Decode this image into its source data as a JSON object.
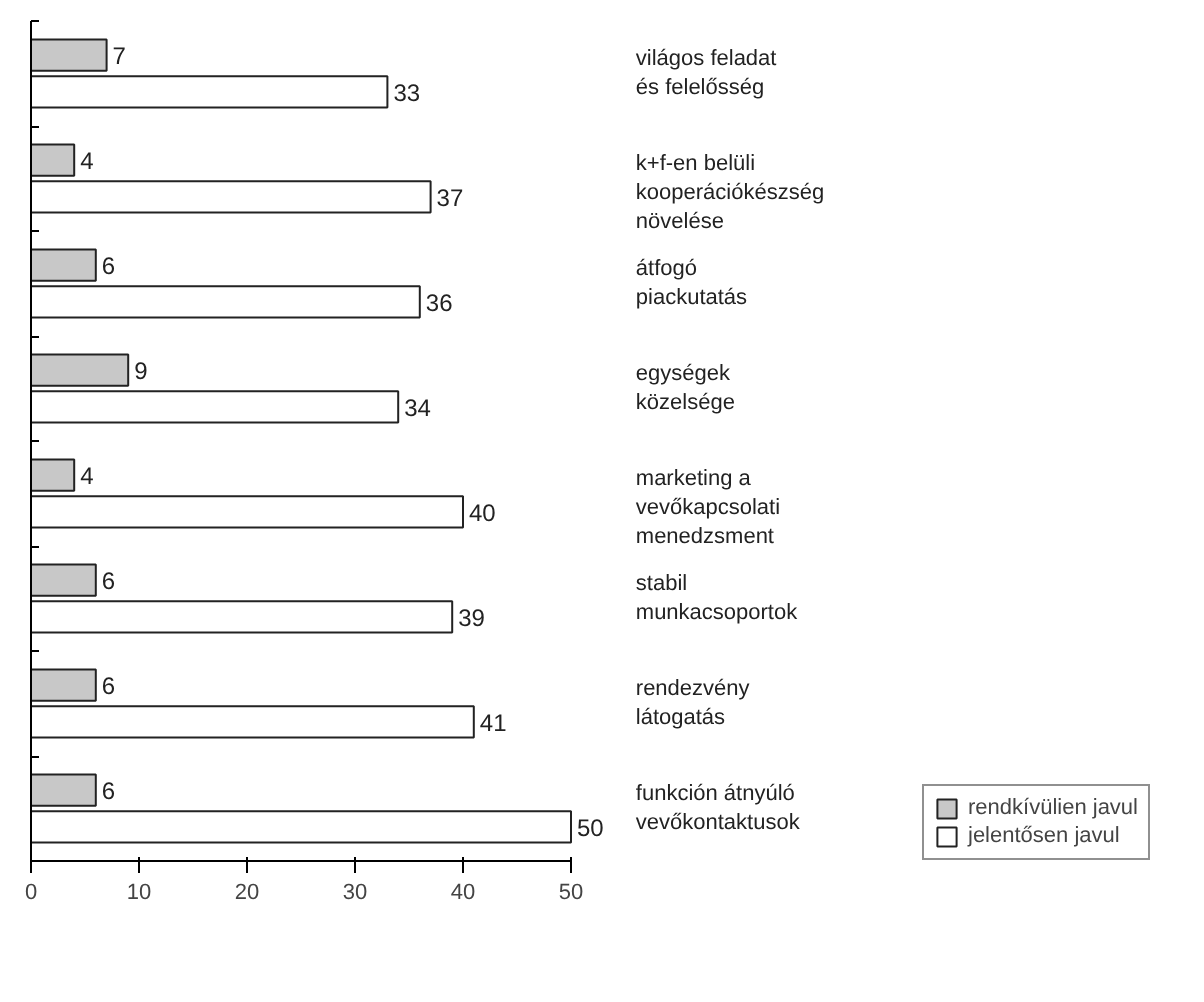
{
  "chart_data": {
    "type": "bar",
    "orientation": "horizontal",
    "categories": [
      "világos feladat és felelősség",
      "k+f-en belüli kooperációkészség növelése",
      "átfogó piackutatás",
      "egységek közelsége",
      "marketing a vevőkapcsolati menedzsment",
      "stabil munkacsoportok",
      "rendezvény látogatás",
      "funkción átnyúló vevőkontaktusok"
    ],
    "series": [
      {
        "name": "rendkívülien javul",
        "color": "#c8c8c8",
        "values": [
          7,
          4,
          6,
          9,
          4,
          6,
          6,
          6
        ]
      },
      {
        "name": "jelentősen javul",
        "color": "#ffffff",
        "values": [
          33,
          37,
          36,
          34,
          40,
          39,
          41,
          50
        ]
      }
    ],
    "xlim": [
      0,
      50
    ],
    "xticks": [
      0,
      10,
      20,
      30,
      40,
      50
    ],
    "data_labels": true,
    "grid": false,
    "legend": "bottom right"
  }
}
